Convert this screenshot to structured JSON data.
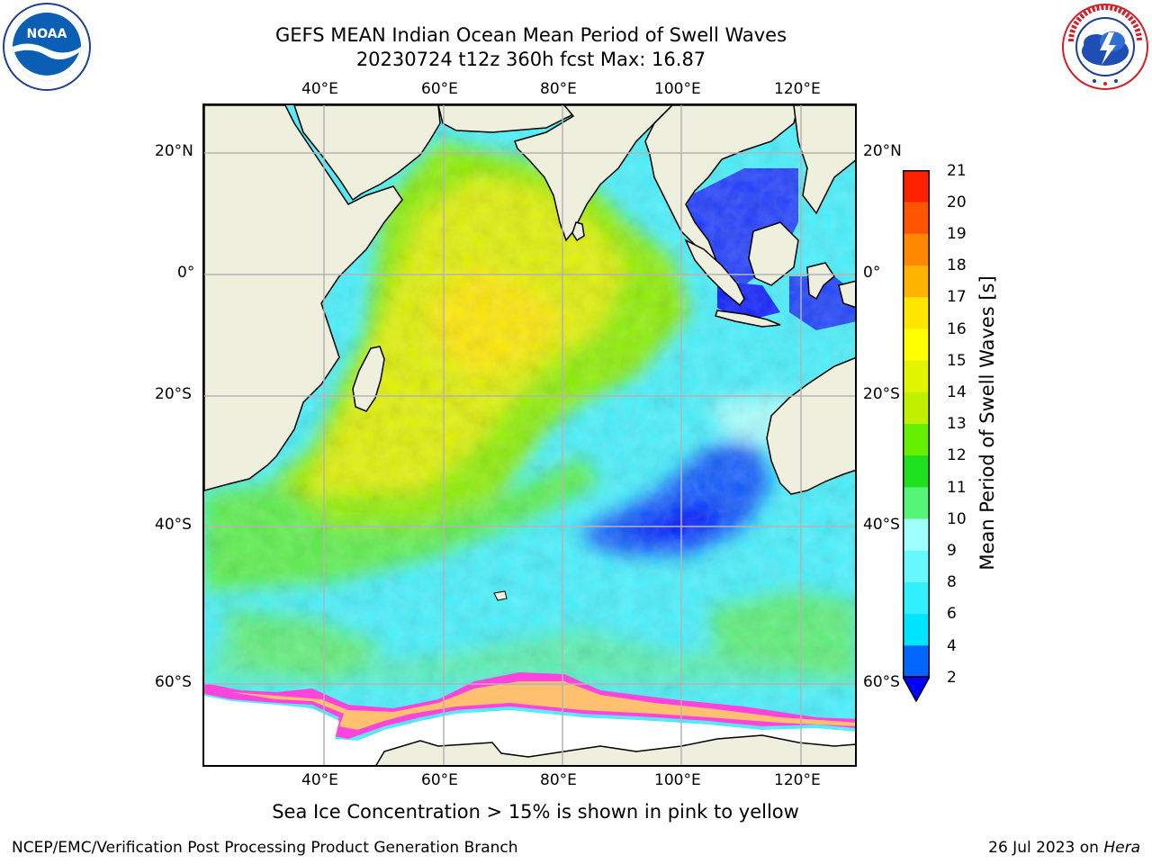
{
  "title": "GEFS MEAN Indian Ocean Mean Period of Swell Waves",
  "subtitle": "20230724 t12z 360h fcst   Max: 16.87",
  "logos": {
    "left": "NOAA",
    "right": "NATIONAL WEATHER SERVICE"
  },
  "lon_ticks": [
    "40°E",
    "60°E",
    "80°E",
    "100°E",
    "120°E"
  ],
  "lat_ticks_left": [
    "20°N",
    "0°",
    "20°S",
    "40°S",
    "60°S"
  ],
  "lat_ticks_right": [
    "20°N",
    "0°",
    "20°S",
    "40°S",
    "60°S"
  ],
  "colorbar": {
    "label": "Mean Period of Swell Waves [s]",
    "ticks": [
      "2",
      "4",
      "6",
      "8",
      "9",
      "10",
      "11",
      "12",
      "13",
      "14",
      "15",
      "16",
      "17",
      "18",
      "19",
      "20",
      "21"
    ],
    "colors": [
      "#0066ff",
      "#00e5ff",
      "#33f0ff",
      "#66f7ff",
      "#a0ffff",
      "#55f577",
      "#1ee01e",
      "#66f000",
      "#bff000",
      "#e0f500",
      "#ffff00",
      "#ffe600",
      "#ffb300",
      "#ff8800",
      "#ff5500",
      "#ff2200"
    ],
    "under_color": "#0000ff"
  },
  "note": "Sea Ice Concentration > 15% is shown in pink to yellow",
  "footer_left": "NCEP/EMC/Verification Post Processing Product Generation Branch",
  "footer_date": "26 Jul 2023 on ",
  "footer_machine": "Hera"
}
